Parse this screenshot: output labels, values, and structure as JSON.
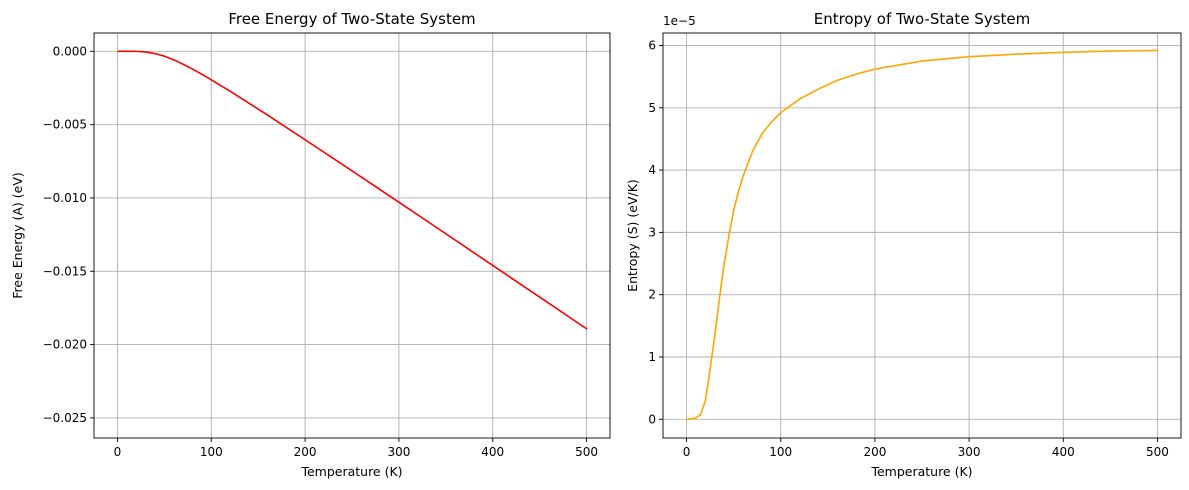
{
  "chart_data": [
    {
      "type": "line",
      "title": "Free Energy of Two-State System",
      "xlabel": "Temperature (K)",
      "ylabel": "Free Energy (A) (eV)",
      "xlim": [
        -25,
        525
      ],
      "ylim": [
        -0.02637,
        0.00125
      ],
      "xticks": [
        0,
        100,
        200,
        300,
        400,
        500
      ],
      "xtick_labels": [
        "0",
        "100",
        "200",
        "300",
        "400",
        "500"
      ],
      "yticks": [
        0.0,
        -0.005,
        -0.01,
        -0.015,
        -0.02,
        -0.025
      ],
      "ytick_labels": [
        "0.000",
        "−0.005",
        "−0.010",
        "−0.015",
        "−0.020",
        "−0.025"
      ],
      "grid": true,
      "series": [
        {
          "color": "#ff0000",
          "x": [
            1,
            10,
            20,
            30,
            40,
            50,
            60,
            70,
            80,
            90,
            100,
            120,
            140,
            160,
            180,
            200,
            250,
            300,
            350,
            400,
            450,
            500
          ],
          "y": [
            0.0,
            0.0,
            -3e-06,
            -4e-05,
            -0.00015,
            -0.00033,
            -0.00058,
            -0.00088,
            -0.00121,
            -0.00157,
            -0.00194,
            -0.00272,
            -0.00353,
            -0.00435,
            -0.00519,
            -0.00603,
            -0.00815,
            -0.01029,
            -0.01244,
            -0.0146,
            -0.01676,
            -0.01892
          ]
        }
      ]
    },
    {
      "type": "line",
      "title": "Entropy of Two-State System",
      "xlabel": "Temperature (K)",
      "ylabel": "Entropy (S) (eV/K)",
      "offset_text": "1e−5",
      "xlim": [
        -25,
        525
      ],
      "ylim": [
        -0.3,
        6.2
      ],
      "xticks": [
        0,
        100,
        200,
        300,
        400,
        500
      ],
      "xtick_labels": [
        "0",
        "100",
        "200",
        "300",
        "400",
        "500"
      ],
      "yticks": [
        0,
        1,
        2,
        3,
        4,
        5,
        6
      ],
      "ytick_labels": [
        "0",
        "1",
        "2",
        "3",
        "4",
        "5",
        "6"
      ],
      "grid": true,
      "series": [
        {
          "color": "#ffa500",
          "x": [
            1,
            10,
            15,
            20,
            25,
            30,
            35,
            40,
            45,
            50,
            55,
            60,
            70,
            80,
            90,
            100,
            120,
            140,
            160,
            180,
            200,
            250,
            300,
            350,
            400,
            450,
            500
          ],
          "y": [
            0.0,
            0.02,
            0.08,
            0.3,
            0.8,
            1.35,
            1.95,
            2.5,
            2.95,
            3.35,
            3.65,
            3.9,
            4.3,
            4.58,
            4.77,
            4.92,
            5.14,
            5.3,
            5.44,
            5.54,
            5.62,
            5.75,
            5.82,
            5.86,
            5.89,
            5.91,
            5.92
          ]
        }
      ]
    }
  ]
}
